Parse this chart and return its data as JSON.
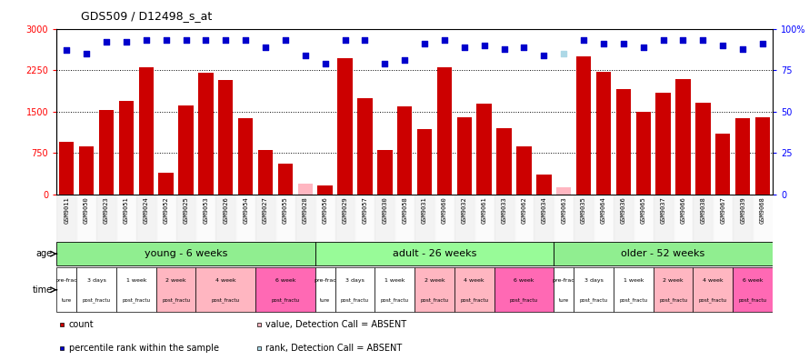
{
  "title": "GDS509 / D12498_s_at",
  "samples": [
    "GSM9011",
    "GSM9050",
    "GSM9023",
    "GSM9051",
    "GSM9024",
    "GSM9052",
    "GSM9025",
    "GSM9053",
    "GSM9026",
    "GSM9054",
    "GSM9027",
    "GSM9055",
    "GSM9028",
    "GSM9056",
    "GSM9029",
    "GSM9057",
    "GSM9030",
    "GSM9058",
    "GSM9031",
    "GSM9060",
    "GSM9032",
    "GSM9061",
    "GSM9033",
    "GSM9062",
    "GSM9034",
    "GSM9063",
    "GSM9035",
    "GSM9064",
    "GSM9036",
    "GSM9065",
    "GSM9037",
    "GSM9066",
    "GSM9038",
    "GSM9067",
    "GSM9039",
    "GSM9068"
  ],
  "counts": [
    950,
    870,
    1530,
    1700,
    2300,
    400,
    1610,
    2200,
    2080,
    1380,
    800,
    560,
    200,
    160,
    2460,
    1740,
    800,
    1600,
    1190,
    2300,
    1400,
    1640,
    1200,
    870,
    360,
    130,
    2500,
    2220,
    1900,
    1500,
    1840,
    2090,
    1660,
    1100,
    1380,
    1400
  ],
  "absent_count": [
    false,
    false,
    false,
    false,
    false,
    false,
    false,
    false,
    false,
    false,
    false,
    false,
    true,
    false,
    false,
    false,
    false,
    false,
    false,
    false,
    false,
    false,
    false,
    false,
    false,
    true,
    false,
    false,
    false,
    false,
    false,
    false,
    false,
    false,
    false,
    false
  ],
  "ranks": [
    87,
    85,
    92,
    92,
    93,
    93,
    93,
    93,
    93,
    93,
    89,
    93,
    84,
    79,
    93,
    93,
    79,
    81,
    91,
    93,
    89,
    90,
    88,
    89,
    84,
    85,
    93,
    91,
    91,
    89,
    93,
    93,
    93,
    90,
    88,
    91
  ],
  "absent_rank": [
    false,
    false,
    false,
    false,
    false,
    false,
    false,
    false,
    false,
    false,
    false,
    false,
    false,
    false,
    false,
    false,
    false,
    false,
    false,
    false,
    false,
    false,
    false,
    false,
    false,
    true,
    false,
    false,
    false,
    false,
    false,
    false,
    false,
    false,
    false,
    false
  ],
  "age_groups": [
    {
      "label": "young - 6 weeks",
      "start": 0,
      "end": 13,
      "color": "#90EE90"
    },
    {
      "label": "adult - 26 weeks",
      "start": 13,
      "end": 25,
      "color": "#98FB98"
    },
    {
      "label": "older - 52 weeks",
      "start": 25,
      "end": 36,
      "color": "#90EE90"
    }
  ],
  "time_groups": [
    {
      "label": "pre-frac",
      "sublabel": "ture",
      "start": 0,
      "end": 1,
      "color": "#ffffff"
    },
    {
      "label": "3 days",
      "sublabel": "post_fractu",
      "start": 1,
      "end": 3,
      "color": "#ffffff"
    },
    {
      "label": "1 week",
      "sublabel": "post_fractu",
      "start": 3,
      "end": 5,
      "color": "#ffffff"
    },
    {
      "label": "2 week",
      "sublabel": "post_fractu",
      "start": 5,
      "end": 7,
      "color": "#FFB6C1"
    },
    {
      "label": "4 week",
      "sublabel": "post_fractu",
      "start": 7,
      "end": 10,
      "color": "#FFB6C1"
    },
    {
      "label": "6 week",
      "sublabel": "post_fractu",
      "start": 10,
      "end": 13,
      "color": "#FF69B4"
    },
    {
      "label": "pre-frac",
      "sublabel": "ture",
      "start": 13,
      "end": 14,
      "color": "#ffffff"
    },
    {
      "label": "3 days",
      "sublabel": "post_fractu",
      "start": 14,
      "end": 16,
      "color": "#ffffff"
    },
    {
      "label": "1 week",
      "sublabel": "post_fractu",
      "start": 16,
      "end": 18,
      "color": "#ffffff"
    },
    {
      "label": "2 week",
      "sublabel": "post_fractu",
      "start": 18,
      "end": 20,
      "color": "#FFB6C1"
    },
    {
      "label": "4 week",
      "sublabel": "post_fractu",
      "start": 20,
      "end": 22,
      "color": "#FFB6C1"
    },
    {
      "label": "6 week",
      "sublabel": "post_fractu",
      "start": 22,
      "end": 25,
      "color": "#FF69B4"
    },
    {
      "label": "pre-frac",
      "sublabel": "ture",
      "start": 25,
      "end": 26,
      "color": "#ffffff"
    },
    {
      "label": "3 days",
      "sublabel": "post_fractu",
      "start": 26,
      "end": 28,
      "color": "#ffffff"
    },
    {
      "label": "1 week",
      "sublabel": "post_fractu",
      "start": 28,
      "end": 30,
      "color": "#ffffff"
    },
    {
      "label": "2 week",
      "sublabel": "post_fractu",
      "start": 30,
      "end": 32,
      "color": "#FFB6C1"
    },
    {
      "label": "4 week",
      "sublabel": "post_fractu",
      "start": 32,
      "end": 34,
      "color": "#FFB6C1"
    },
    {
      "label": "6 week",
      "sublabel": "post_fractu",
      "start": 34,
      "end": 36,
      "color": "#FF69B4"
    }
  ],
  "ylim_left": [
    0,
    3000
  ],
  "ylim_right": [
    0,
    100
  ],
  "yticks_left": [
    0,
    750,
    1500,
    2250,
    3000
  ],
  "yticks_right": [
    0,
    25,
    50,
    75,
    100
  ],
  "bar_color": "#CC0000",
  "absent_bar_color": "#FFB6C1",
  "rank_color": "#0000CC",
  "absent_rank_color": "#ADD8E6",
  "bg_color": "#ffffff"
}
